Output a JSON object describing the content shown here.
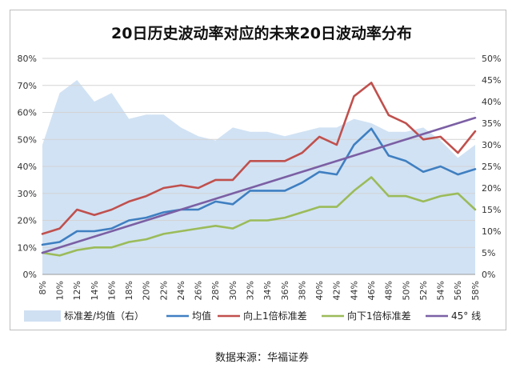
{
  "source": "数据来源：华福证券",
  "chart_data": {
    "type": "line",
    "title": "20日历史波动率对应的未来20日波动率分布",
    "categories": [
      "8%",
      "10%",
      "12%",
      "14%",
      "16%",
      "18%",
      "20%",
      "22%",
      "24%",
      "26%",
      "28%",
      "30%",
      "32%",
      "34%",
      "36%",
      "38%",
      "40%",
      "42%",
      "44%",
      "46%",
      "48%",
      "50%",
      "52%",
      "54%",
      "56%",
      "58%"
    ],
    "left_axis": {
      "min": 0,
      "max": 80,
      "step": 10,
      "suffix": "%"
    },
    "right_axis": {
      "min": 0,
      "max": 50,
      "step": 5,
      "suffix": "%"
    },
    "grid": true,
    "legend_position": "bottom",
    "area_series": {
      "name": "标准差/均值（右）",
      "axis": "right",
      "color": "#cfe0f3",
      "values": [
        30,
        42,
        45,
        40,
        42,
        36,
        37,
        37,
        34,
        32,
        31,
        34,
        33,
        33,
        32,
        33,
        34,
        34,
        36,
        35,
        33,
        33,
        34,
        31,
        27,
        30
      ]
    },
    "series": [
      {
        "name": "均值",
        "axis": "left",
        "color": "#3f7fc1",
        "values": [
          11,
          12,
          16,
          16,
          17,
          20,
          21,
          23,
          24,
          24,
          27,
          26,
          31,
          31,
          31,
          34,
          38,
          37,
          48,
          54,
          44,
          42,
          38,
          40,
          37,
          39
        ]
      },
      {
        "name": "向上1倍标准差",
        "axis": "left",
        "color": "#c0504d",
        "values": [
          15,
          17,
          24,
          22,
          24,
          27,
          29,
          32,
          33,
          32,
          35,
          35,
          42,
          42,
          42,
          45,
          51,
          48,
          66,
          71,
          59,
          56,
          50,
          51,
          45,
          53
        ]
      },
      {
        "name": "向下1倍标准差",
        "axis": "left",
        "color": "#9bbb59",
        "values": [
          8,
          7,
          9,
          10,
          10,
          12,
          13,
          15,
          16,
          17,
          18,
          17,
          20,
          20,
          21,
          23,
          25,
          25,
          31,
          36,
          29,
          29,
          27,
          29,
          30,
          24
        ]
      },
      {
        "name": "45° 线",
        "axis": "left",
        "color": "#7b5fa4",
        "values": [
          8,
          10,
          12,
          14,
          16,
          18,
          20,
          22,
          24,
          26,
          28,
          30,
          32,
          34,
          36,
          38,
          40,
          42,
          44,
          46,
          48,
          50,
          52,
          54,
          56,
          58
        ]
      }
    ]
  }
}
